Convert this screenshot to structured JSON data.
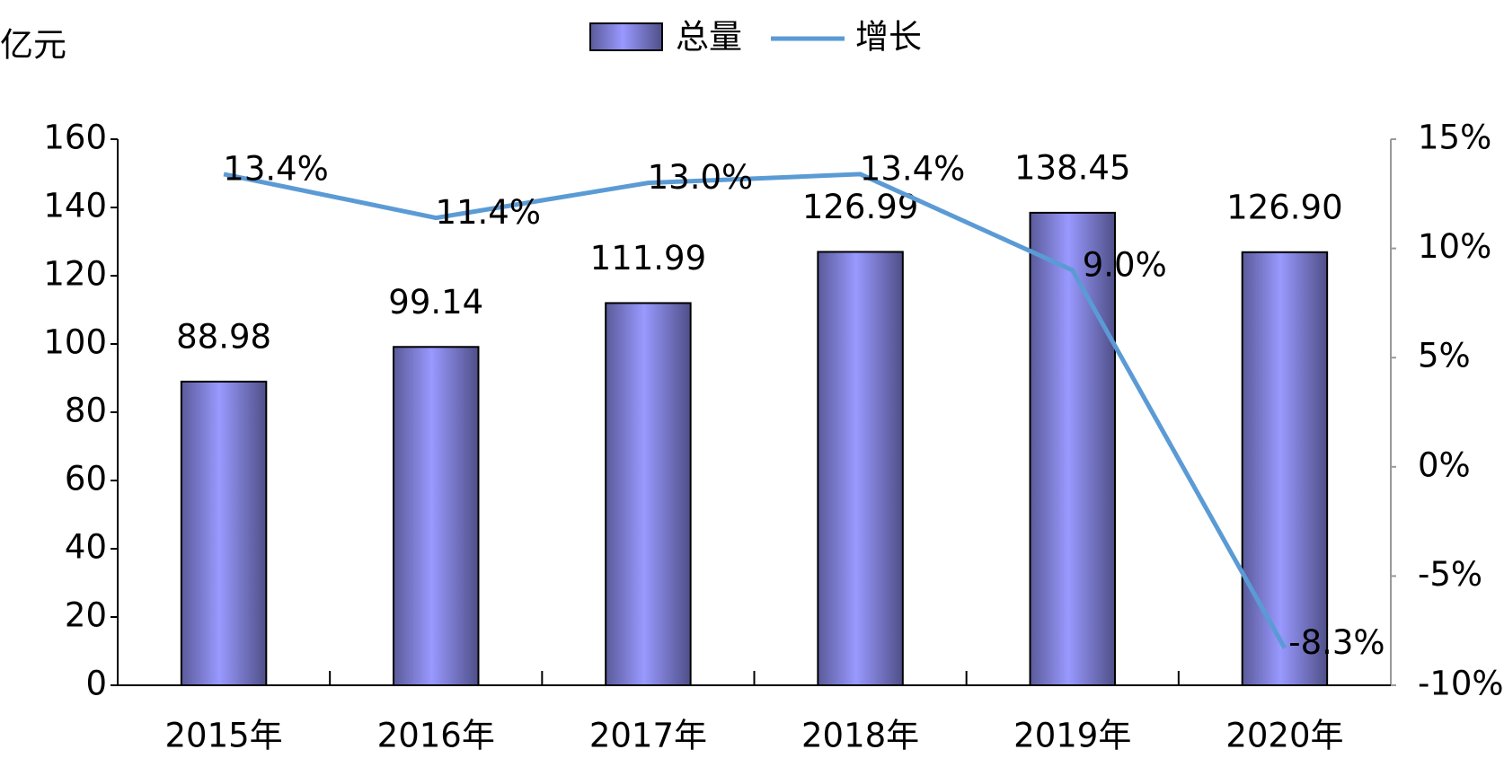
{
  "chart_data": {
    "type": "bar",
    "y_label": "亿元",
    "categories": [
      "2015年",
      "2016年",
      "2017年",
      "2018年",
      "2019年",
      "2020年"
    ],
    "series": [
      {
        "name": "总量",
        "type": "bar",
        "color": "#9999ff",
        "values": [
          88.98,
          99.14,
          111.99,
          126.99,
          138.45,
          126.9
        ],
        "value_labels": [
          "88.98",
          "99.14",
          "111.99",
          "126.99",
          "138.45",
          "126.90"
        ]
      },
      {
        "name": "增长",
        "type": "line",
        "axis": "y2",
        "color": "#5b9bd5",
        "values": [
          13.4,
          11.4,
          13.0,
          13.4,
          9.0,
          -8.3
        ],
        "value_labels": [
          "13.4%",
          "11.4%",
          "13.0%",
          "13.4%",
          "9.0%",
          "-8.3%"
        ]
      }
    ],
    "ylim": [
      0,
      160
    ],
    "yticks": [
      0,
      20,
      40,
      60,
      80,
      100,
      120,
      140,
      160
    ],
    "y2lim": [
      -10,
      15
    ],
    "y2ticks": [
      {
        "value": -10,
        "label": "-10%"
      },
      {
        "value": -5,
        "label": "-5%"
      },
      {
        "value": 0,
        "label": "0%"
      },
      {
        "value": 5,
        "label": "5%"
      },
      {
        "value": 10,
        "label": "10%"
      },
      {
        "value": 15,
        "label": "15%"
      }
    ],
    "legend": "top"
  }
}
